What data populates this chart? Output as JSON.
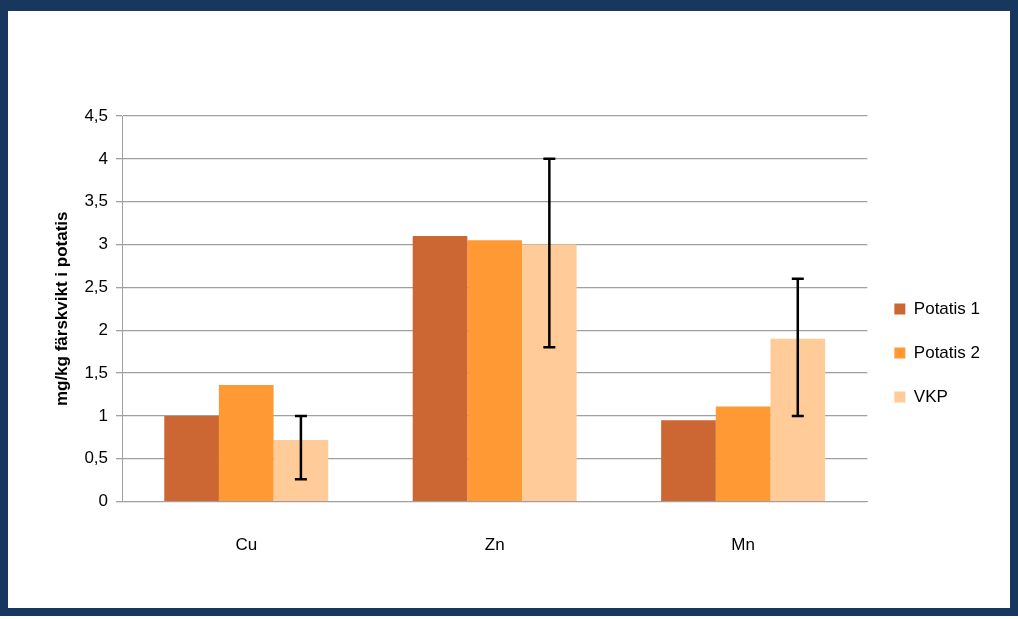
{
  "chart_data": {
    "type": "bar",
    "ylabel": "mg/kg färskvikt i potatis",
    "categories": [
      "Cu",
      "Zn",
      "Mn"
    ],
    "series": [
      {
        "name": "Potatis 1",
        "color": "#cc6633",
        "values": [
          1.0,
          3.1,
          0.95
        ]
      },
      {
        "name": "Potatis 2",
        "color": "#ff9933",
        "values": [
          1.36,
          3.05,
          1.11
        ]
      },
      {
        "name": "VKP",
        "color": "#ffcc99",
        "values": [
          0.72,
          3.0,
          1.9
        ],
        "errors": [
          [
            0.26,
            1.0
          ],
          [
            1.8,
            4.0
          ],
          [
            1.0,
            2.6
          ]
        ]
      }
    ],
    "ylim": [
      0,
      4.5
    ],
    "yticks": [
      {
        "value": 0,
        "label": "0"
      },
      {
        "value": 0.5,
        "label": "0,5"
      },
      {
        "value": 1,
        "label": "1"
      },
      {
        "value": 1.5,
        "label": "1,5"
      },
      {
        "value": 2,
        "label": "2"
      },
      {
        "value": 2.5,
        "label": "2,5"
      },
      {
        "value": 3,
        "label": "3"
      },
      {
        "value": 3.5,
        "label": "3,5"
      },
      {
        "value": 4,
        "label": "4"
      },
      {
        "value": 4.5,
        "label": "4,5"
      }
    ],
    "grid": "y",
    "legend": "right"
  }
}
